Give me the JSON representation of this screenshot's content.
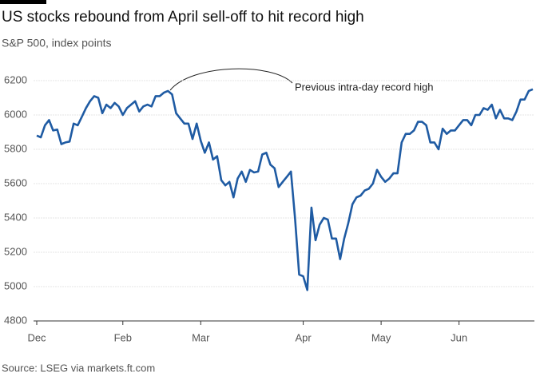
{
  "chart_data": {
    "type": "line",
    "title": "US stocks rebound from April sell-off to hit record high",
    "subtitle": "S&P 500, index points",
    "source": "Source: LSEG via markets.ft.com",
    "annotation": "Previous intra-day record high",
    "categories": [
      "Dec",
      null,
      null,
      null,
      null,
      null,
      null,
      null,
      null,
      null,
      null,
      null,
      null,
      null,
      null,
      null,
      null,
      null,
      null,
      null,
      null,
      "Feb",
      null,
      null,
      null,
      null,
      null,
      null,
      null,
      null,
      null,
      null,
      null,
      null,
      null,
      null,
      null,
      null,
      null,
      null,
      "Mar",
      null,
      null,
      null,
      null,
      null,
      null,
      null,
      null,
      null,
      null,
      null,
      null,
      null,
      null,
      null,
      null,
      null,
      null,
      null,
      null,
      null,
      null,
      null,
      null,
      "Apr",
      null,
      null,
      null,
      null,
      null,
      null,
      null,
      null,
      null,
      null,
      null,
      null,
      null,
      null,
      null,
      null,
      null,
      null,
      "May",
      null,
      null,
      null,
      null,
      null,
      null,
      null,
      null,
      null,
      null,
      null,
      null,
      null,
      null,
      null,
      null,
      null,
      null,
      "Jun",
      null,
      null,
      null,
      null,
      null,
      null,
      null,
      null,
      null,
      null,
      null,
      null,
      null,
      null,
      null,
      null,
      null,
      null
    ],
    "series": [
      {
        "name": "S&P 500",
        "color": "#1f5ba3",
        "values": [
          5880,
          5870,
          5940,
          5970,
          5910,
          5915,
          5830,
          5840,
          5845,
          5950,
          5940,
          5990,
          6040,
          6080,
          6110,
          6100,
          6010,
          6060,
          6040,
          6070,
          6050,
          6000,
          6040,
          6060,
          6080,
          6020,
          6050,
          6060,
          6050,
          6110,
          6110,
          6130,
          6140,
          6120,
          6010,
          5980,
          5950,
          5950,
          5860,
          5950,
          5850,
          5780,
          5840,
          5740,
          5760,
          5620,
          5590,
          5610,
          5520,
          5630,
          5670,
          5610,
          5680,
          5665,
          5670,
          5770,
          5780,
          5710,
          5690,
          5580,
          5610,
          5640,
          5670,
          5400,
          5070,
          5060,
          4980,
          5460,
          5270,
          5360,
          5400,
          5390,
          5280,
          5280,
          5160,
          5280,
          5370,
          5480,
          5520,
          5530,
          5560,
          5570,
          5600,
          5680,
          5640,
          5610,
          5630,
          5660,
          5660,
          5840,
          5890,
          5890,
          5910,
          5960,
          5960,
          5940,
          5840,
          5840,
          5800,
          5920,
          5890,
          5910,
          5910,
          5940,
          5970,
          5970,
          5940,
          6000,
          6000,
          6040,
          6030,
          6060,
          5980,
          6030,
          5980,
          5980,
          5970,
          6020,
          6090,
          6090,
          6140,
          6150
        ]
      }
    ],
    "ylim": [
      4800,
      6200
    ],
    "yticks": [
      4800,
      5000,
      5200,
      5400,
      5600,
      5800,
      6000,
      6200
    ],
    "grid": true
  }
}
